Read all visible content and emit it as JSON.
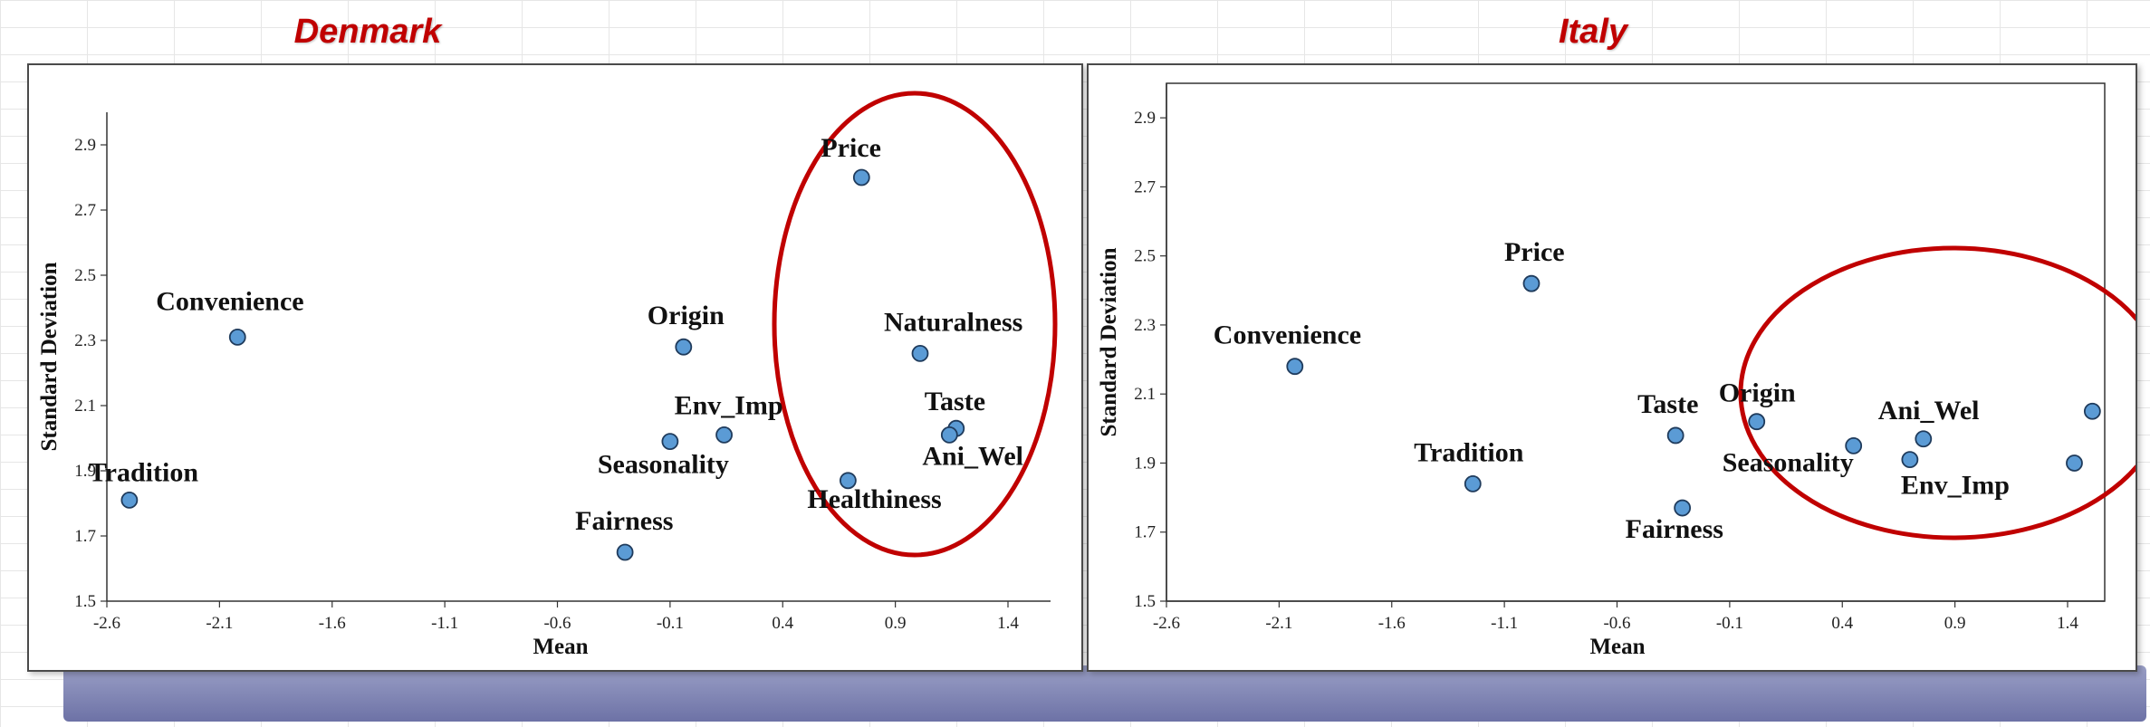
{
  "chart_data": [
    {
      "type": "scatter",
      "title": "Denmark",
      "xlabel": "Mean",
      "ylabel": "Standard Deviation",
      "xlim": [
        -2.6,
        1.7
      ],
      "ylim": [
        1.5,
        3.0
      ],
      "xticks": [
        "-2.6",
        "-2.1",
        "-1.6",
        "-1.1",
        "-0.6",
        "-0.1",
        "0.4",
        "0.9",
        "1.4"
      ],
      "yticks": [
        "1.5",
        "1.7",
        "1.9",
        "2.1",
        "2.3",
        "2.5",
        "2.7",
        "2.9"
      ],
      "grid": false,
      "highlight_color": "#c00000",
      "point_color": "#5b9bd5",
      "points": [
        {
          "label": "Tradition",
          "x": -2.5,
          "y": 1.81
        },
        {
          "label": "Convenience",
          "x": -2.02,
          "y": 2.31
        },
        {
          "label": "Origin",
          "x": -0.04,
          "y": 2.28
        },
        {
          "label": "Env_Imp",
          "x": 0.14,
          "y": 2.01
        },
        {
          "label": "Seasonality",
          "x": -0.1,
          "y": 1.99
        },
        {
          "label": "Fairness",
          "x": -0.3,
          "y": 1.65
        },
        {
          "label": "Price",
          "x": 0.75,
          "y": 2.8
        },
        {
          "label": "Naturalness",
          "x": 1.01,
          "y": 2.26
        },
        {
          "label": "Taste",
          "x": 1.17,
          "y": 2.03
        },
        {
          "label": "Ani_Wel",
          "x": 1.14,
          "y": 2.01
        },
        {
          "label": "Healthiness",
          "x": 0.69,
          "y": 1.87
        }
      ],
      "highlighted": [
        "Price",
        "Naturalness",
        "Taste",
        "Ani_Wel",
        "Healthiness"
      ]
    },
    {
      "type": "scatter",
      "title": "Italy",
      "xlabel": "Mean",
      "ylabel": "Standard Deviation",
      "xlim": [
        -2.6,
        1.7
      ],
      "ylim": [
        1.5,
        3.0
      ],
      "xticks": [
        "-2.6",
        "-2.1",
        "-1.6",
        "-1.1",
        "-0.6",
        "-0.1",
        "0.4",
        "0.9",
        "1.4"
      ],
      "yticks": [
        "1.5",
        "1.7",
        "1.9",
        "2.1",
        "2.3",
        "2.5",
        "2.7",
        "2.9"
      ],
      "grid": false,
      "highlight_color": "#c00000",
      "point_color": "#5b9bd5",
      "points": [
        {
          "label": "Convenience",
          "x": -2.03,
          "y": 2.18
        },
        {
          "label": "Price",
          "x": -0.98,
          "y": 2.42
        },
        {
          "label": "Tradition",
          "x": -1.24,
          "y": 1.84
        },
        {
          "label": "Taste",
          "x": -0.34,
          "y": 1.98
        },
        {
          "label": "Fairness",
          "x": -0.31,
          "y": 1.77
        },
        {
          "label": "Origin",
          "x": 0.02,
          "y": 2.02
        },
        {
          "label": "Seasonality",
          "x": 0.45,
          "y": 1.95
        },
        {
          "label": "Ani_Wel",
          "x": 0.76,
          "y": 1.97
        },
        {
          "label": "Env_Imp",
          "x": 0.7,
          "y": 1.91
        },
        {
          "label": "",
          "x": 1.43,
          "y": 1.9
        },
        {
          "label": "",
          "x": 1.51,
          "y": 2.05
        }
      ],
      "highlighted": [
        "Origin",
        "Seasonality",
        "Ani_Wel",
        "Env_Imp"
      ]
    }
  ]
}
